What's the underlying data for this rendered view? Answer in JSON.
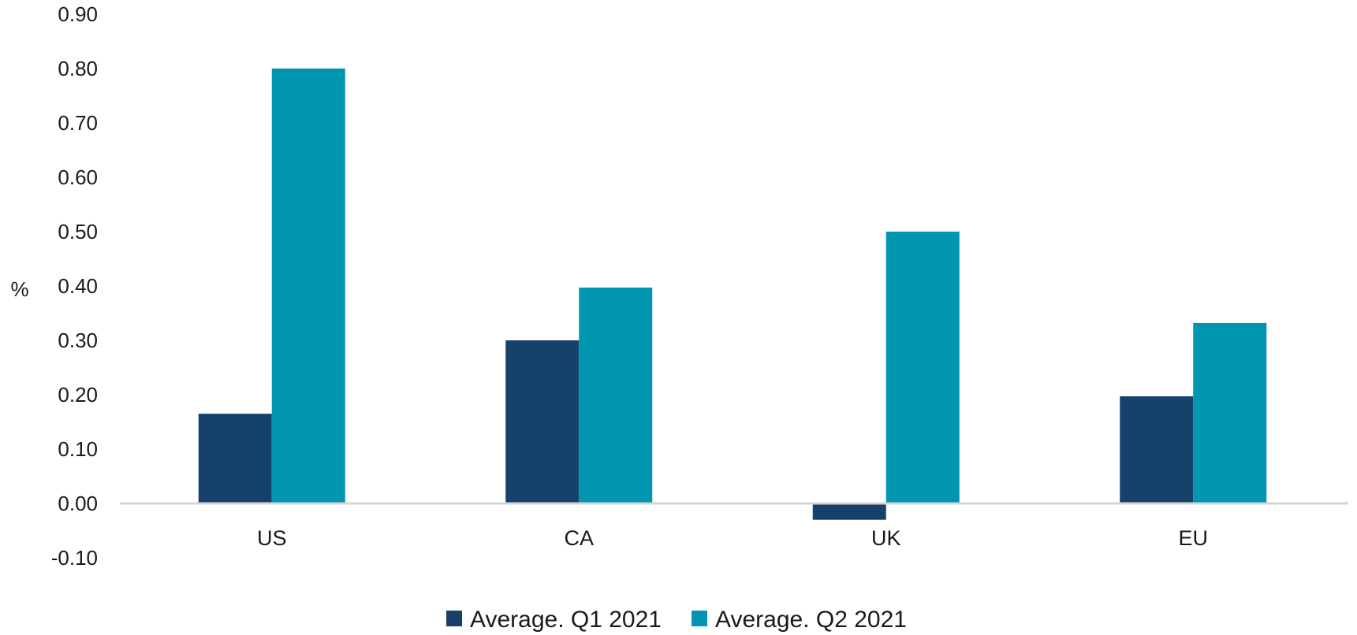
{
  "chart_data": {
    "type": "bar",
    "title": "",
    "xlabel": "",
    "ylabel": "%",
    "ylim": [
      -0.1,
      0.9
    ],
    "yticks": [
      "0.90",
      "0.80",
      "0.70",
      "0.60",
      "0.50",
      "0.40",
      "0.30",
      "0.20",
      "0.10",
      "0.00",
      "-0.10"
    ],
    "categories": [
      "US",
      "CA",
      "UK",
      "EU"
    ],
    "series": [
      {
        "name": "Average. Q1 2021",
        "color": "#16416b",
        "values": [
          0.165,
          0.3,
          -0.03,
          0.197
        ]
      },
      {
        "name": "Average. Q2 2021",
        "color": "#0096b0",
        "values": [
          0.8,
          0.397,
          0.5,
          0.332
        ]
      }
    ],
    "grid": false,
    "legend_position": "bottom-center"
  }
}
